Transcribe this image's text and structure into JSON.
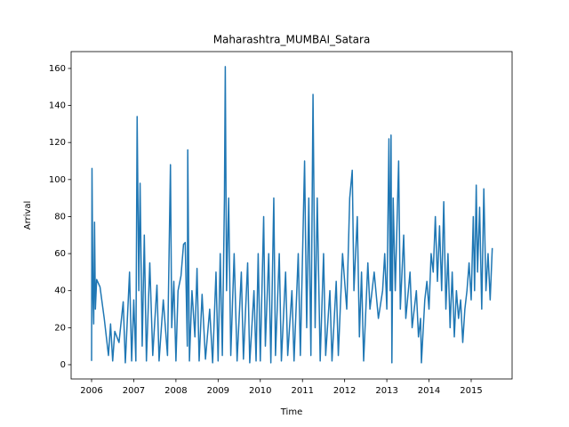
{
  "chart_data": {
    "type": "line",
    "title": "Maharashtra_MUMBAI_Satara",
    "x_label": "Time",
    "y_label": "Arrival",
    "x": [
      2006.0,
      2006.01,
      2006.03,
      2006.05,
      2006.07,
      2006.09,
      2006.12,
      2006.2,
      2006.3,
      2006.4,
      2006.45,
      2006.5,
      2006.55,
      2006.65,
      2006.75,
      2006.8,
      2006.9,
      2006.95,
      2007.0,
      2007.05,
      2007.08,
      2007.12,
      2007.15,
      2007.2,
      2007.25,
      2007.3,
      2007.38,
      2007.45,
      2007.55,
      2007.6,
      2007.7,
      2007.8,
      2007.87,
      2007.9,
      2007.95,
      2008.0,
      2008.05,
      2008.12,
      2008.18,
      2008.22,
      2008.27,
      2008.28,
      2008.32,
      2008.38,
      2008.45,
      2008.5,
      2008.55,
      2008.62,
      2008.7,
      2008.8,
      2008.87,
      2008.95,
      2009.0,
      2009.05,
      2009.1,
      2009.15,
      2009.17,
      2009.2,
      2009.25,
      2009.3,
      2009.38,
      2009.45,
      2009.55,
      2009.6,
      2009.7,
      2009.75,
      2009.85,
      2009.9,
      2009.95,
      2010.0,
      2010.08,
      2010.12,
      2010.2,
      2010.25,
      2010.32,
      2010.36,
      2010.45,
      2010.5,
      2010.6,
      2010.65,
      2010.75,
      2010.8,
      2010.9,
      2010.95,
      2011.05,
      2011.1,
      2011.15,
      2011.2,
      2011.25,
      2011.3,
      2011.35,
      2011.42,
      2011.5,
      2011.55,
      2011.65,
      2011.7,
      2011.8,
      2011.85,
      2011.95,
      2012.05,
      2012.12,
      2012.18,
      2012.22,
      2012.3,
      2012.35,
      2012.4,
      2012.45,
      2012.55,
      2012.6,
      2012.7,
      2012.8,
      2012.9,
      2012.95,
      2013.0,
      2013.05,
      2013.08,
      2013.1,
      2013.12,
      2013.15,
      2013.2,
      2013.28,
      2013.32,
      2013.4,
      2013.45,
      2013.55,
      2013.6,
      2013.7,
      2013.75,
      2013.8,
      2013.82,
      2013.9,
      2013.95,
      2014.0,
      2014.05,
      2014.1,
      2014.15,
      2014.2,
      2014.25,
      2014.3,
      2014.35,
      2014.4,
      2014.45,
      2014.5,
      2014.55,
      2014.6,
      2014.65,
      2014.7,
      2014.75,
      2014.8,
      2014.85,
      2014.9,
      2014.95,
      2015.0,
      2015.05,
      2015.08,
      2015.12,
      2015.15,
      2015.2,
      2015.25,
      2015.3,
      2015.35,
      2015.4,
      2015.45,
      2015.5
    ],
    "series": [
      {
        "color": "#1f77b4",
        "values": [
          2,
          106,
          40,
          22,
          77,
          30,
          46,
          42,
          25,
          5,
          22,
          2,
          18,
          12,
          34,
          1,
          50,
          2,
          35,
          2,
          134,
          40,
          98,
          10,
          70,
          2,
          55,
          5,
          43,
          2,
          35,
          5,
          108,
          20,
          45,
          2,
          40,
          48,
          65,
          66,
          10,
          116,
          2,
          40,
          15,
          52,
          2,
          38,
          3,
          30,
          1,
          50,
          2,
          60,
          5,
          90,
          161,
          40,
          90,
          5,
          60,
          2,
          50,
          3,
          55,
          1,
          40,
          2,
          60,
          2,
          80,
          10,
          60,
          1,
          90,
          5,
          60,
          2,
          50,
          5,
          40,
          2,
          60,
          5,
          110,
          20,
          90,
          5,
          146,
          20,
          90,
          2,
          60,
          5,
          40,
          2,
          45,
          5,
          60,
          30,
          90,
          105,
          40,
          80,
          15,
          50,
          2,
          55,
          30,
          50,
          25,
          40,
          60,
          30,
          122,
          40,
          124,
          1,
          90,
          40,
          110,
          30,
          70,
          25,
          50,
          20,
          40,
          15,
          25,
          1,
          35,
          45,
          30,
          60,
          50,
          80,
          45,
          75,
          40,
          88,
          30,
          60,
          20,
          50,
          15,
          40,
          25,
          35,
          12,
          30,
          40,
          55,
          35,
          80,
          40,
          97,
          50,
          85,
          30,
          95,
          40,
          60,
          35,
          63
        ]
      }
    ],
    "xlim": [
      2005.515,
      2015.97
    ],
    "xticks": [
      2006,
      2007,
      2008,
      2009,
      2010,
      2011,
      2012,
      2013,
      2014,
      2015
    ],
    "ylim": [
      -7.7,
      169.1
    ],
    "yticks": [
      0,
      20,
      40,
      60,
      80,
      100,
      120,
      140,
      160
    ]
  }
}
